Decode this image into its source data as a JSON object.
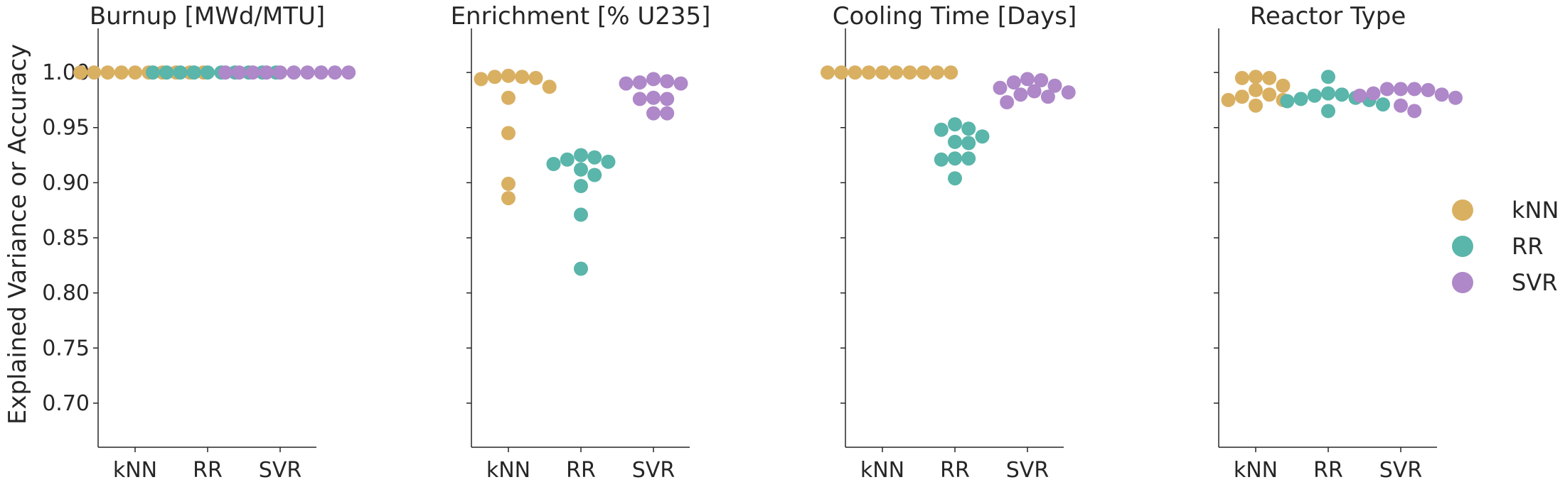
{
  "chart_data": {
    "type": "scatter",
    "subtype": "swarm",
    "ylabel": "Explained Variance or Accuracy",
    "ylim": [
      0.66,
      1.04
    ],
    "yticks": [
      "1.00",
      "0.95",
      "0.90",
      "0.85",
      "0.80",
      "0.75",
      "0.70"
    ],
    "categories": [
      "kNN",
      "RR",
      "SVR"
    ],
    "legend": {
      "placement": "right",
      "entries": [
        {
          "label": "kNN",
          "color": "#d9b062"
        },
        {
          "label": "RR",
          "color": "#5ab5aa"
        },
        {
          "label": "SVR",
          "color": "#ae88c8"
        }
      ]
    },
    "panels": [
      {
        "title": "Burnup [MWd/MTU]",
        "series": [
          {
            "name": "kNN",
            "values": [
              1.0,
              1.0,
              1.0,
              1.0,
              1.0,
              1.0,
              1.0,
              1.0,
              1.0,
              1.0
            ]
          },
          {
            "name": "RR",
            "values": [
              1.0,
              1.0,
              1.0,
              1.0,
              1.0,
              1.0,
              1.0,
              1.0,
              1.0,
              1.0
            ]
          },
          {
            "name": "SVR",
            "values": [
              1.0,
              1.0,
              1.0,
              1.0,
              1.0,
              1.0,
              1.0,
              1.0,
              1.0,
              1.0
            ]
          }
        ]
      },
      {
        "title": "Enrichment [% U235]",
        "series": [
          {
            "name": "kNN",
            "values": [
              0.997,
              0.996,
              0.996,
              0.995,
              0.994,
              0.987,
              0.977,
              0.945,
              0.899,
              0.886
            ]
          },
          {
            "name": "RR",
            "values": [
              0.925,
              0.923,
              0.921,
              0.919,
              0.917,
              0.912,
              0.907,
              0.897,
              0.871,
              0.822
            ]
          },
          {
            "name": "SVR",
            "values": [
              0.994,
              0.992,
              0.991,
              0.99,
              0.99,
              0.977,
              0.976,
              0.976,
              0.963,
              0.963
            ]
          }
        ]
      },
      {
        "title": "Cooling Time [Days]",
        "series": [
          {
            "name": "kNN",
            "values": [
              1.0,
              1.0,
              1.0,
              1.0,
              1.0,
              1.0,
              1.0,
              1.0,
              1.0,
              1.0
            ]
          },
          {
            "name": "RR",
            "values": [
              0.953,
              0.949,
              0.948,
              0.942,
              0.937,
              0.936,
              0.922,
              0.922,
              0.921,
              0.904
            ]
          },
          {
            "name": "SVR",
            "values": [
              0.994,
              0.993,
              0.991,
              0.988,
              0.986,
              0.983,
              0.982,
              0.98,
              0.978,
              0.973
            ]
          }
        ]
      },
      {
        "title": "Reactor Type",
        "series": [
          {
            "name": "kNN",
            "values": [
              0.996,
              0.995,
              0.995,
              0.988,
              0.984,
              0.98,
              0.978,
              0.975,
              0.975,
              0.97
            ]
          },
          {
            "name": "RR",
            "values": [
              0.996,
              0.981,
              0.98,
              0.979,
              0.977,
              0.976,
              0.975,
              0.974,
              0.971,
              0.965
            ]
          },
          {
            "name": "SVR",
            "values": [
              0.985,
              0.985,
              0.985,
              0.984,
              0.981,
              0.98,
              0.979,
              0.977,
              0.97,
              0.965
            ]
          }
        ]
      }
    ]
  }
}
